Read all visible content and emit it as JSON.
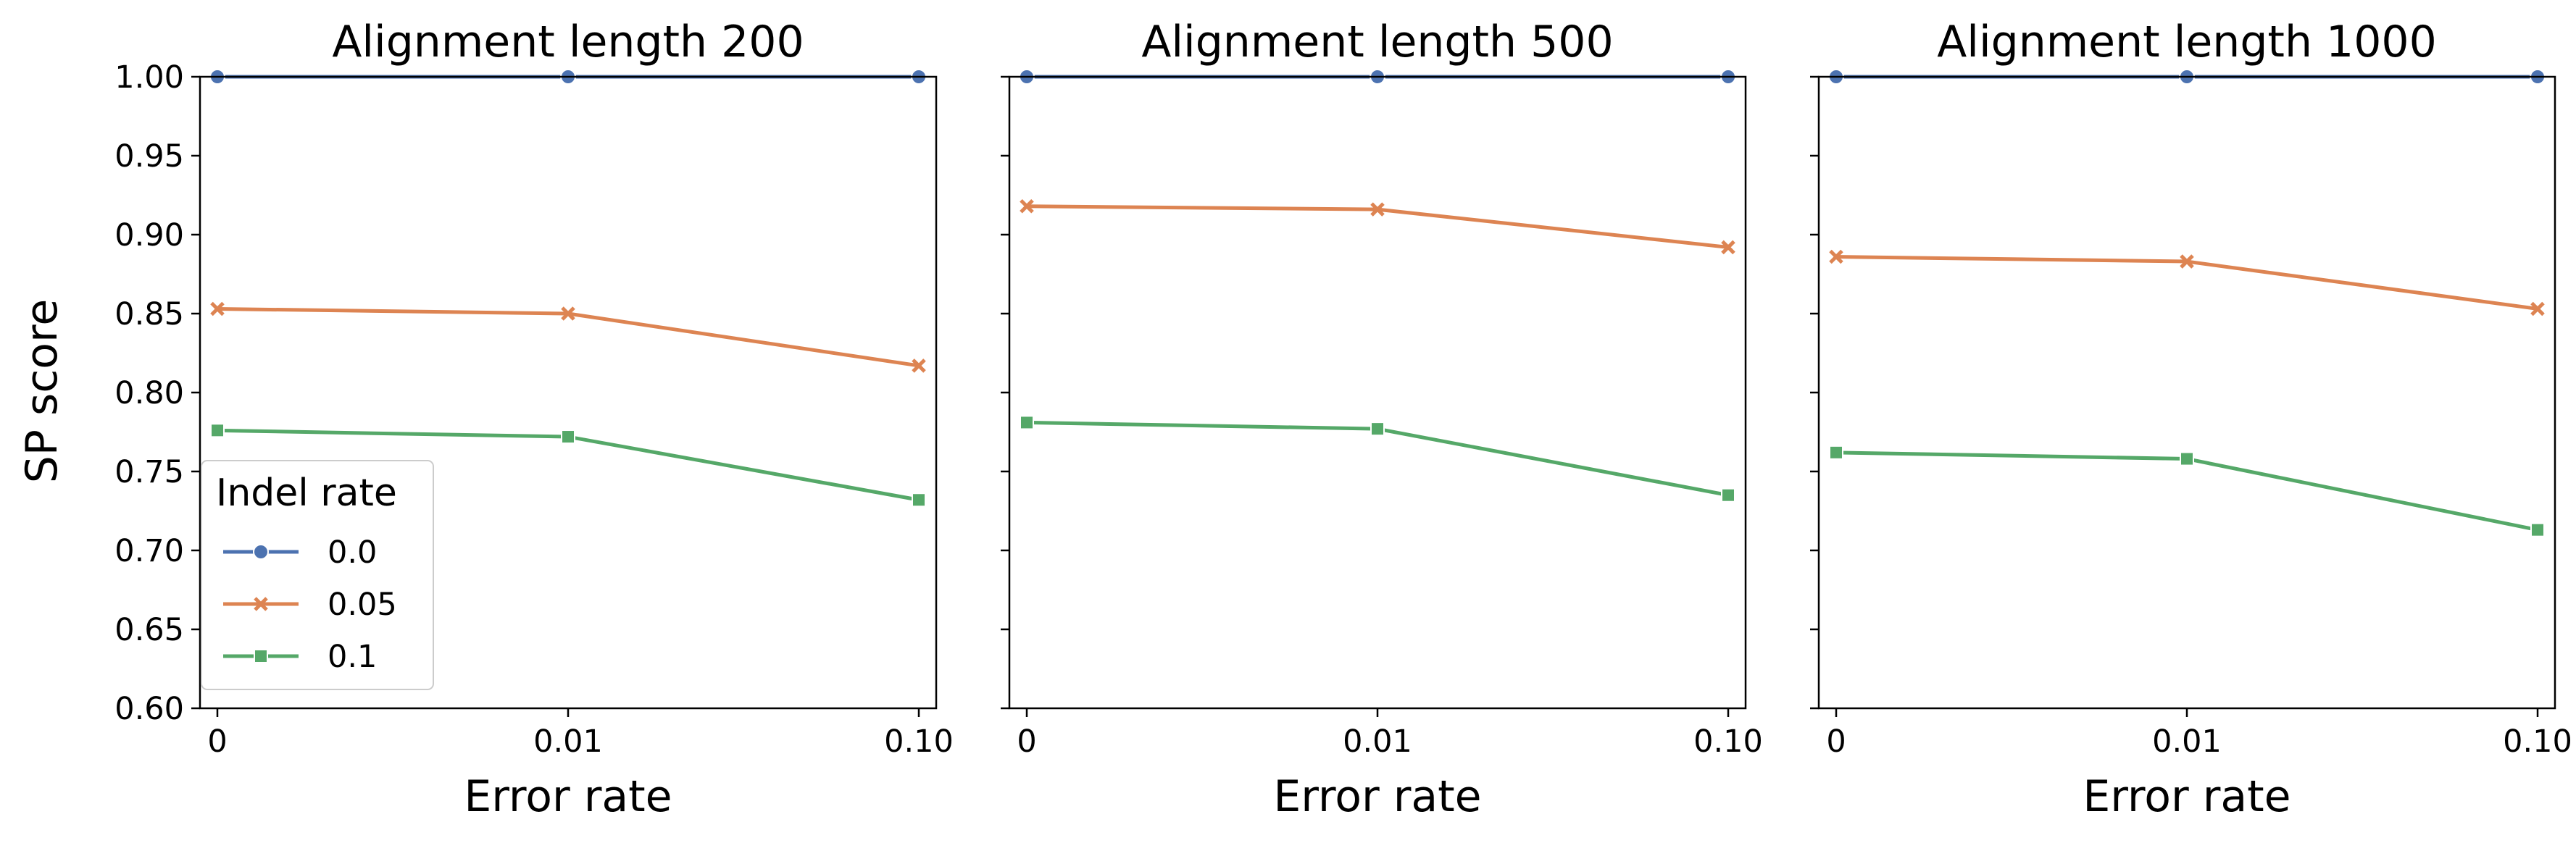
{
  "chart_data": {
    "type": "line",
    "shared_ylabel": "SP score",
    "ylim": [
      0.6,
      1.0
    ],
    "yticks": [
      "0.60",
      "0.65",
      "0.70",
      "0.75",
      "0.80",
      "0.85",
      "0.90",
      "0.95",
      "1.00"
    ],
    "legend": {
      "title": "Indel rate",
      "placement": "lower-left of first panel",
      "entries": [
        "0.0",
        "0.05",
        "0.1"
      ]
    },
    "colors": {
      "0.0": "#4c72b0",
      "0.05": "#dd8452",
      "0.1": "#55a868"
    },
    "markers": {
      "0.0": "circle",
      "0.05": "x",
      "0.1": "square"
    },
    "panels": [
      {
        "title": "Alignment length 200",
        "xlabel": "Error rate",
        "categories": [
          "0",
          "0.01",
          "0.10"
        ],
        "series": [
          {
            "name": "0.0",
            "values": [
              1.0,
              1.0,
              1.0
            ]
          },
          {
            "name": "0.05",
            "values": [
              0.853,
              0.85,
              0.817
            ]
          },
          {
            "name": "0.1",
            "values": [
              0.776,
              0.772,
              0.732
            ]
          }
        ]
      },
      {
        "title": "Alignment length 500",
        "xlabel": "Error rate",
        "categories": [
          "0",
          "0.01",
          "0.10"
        ],
        "series": [
          {
            "name": "0.0",
            "values": [
              1.0,
              1.0,
              1.0
            ]
          },
          {
            "name": "0.05",
            "values": [
              0.918,
              0.916,
              0.892
            ]
          },
          {
            "name": "0.1",
            "values": [
              0.781,
              0.777,
              0.735
            ]
          }
        ]
      },
      {
        "title": "Alignment length 1000",
        "xlabel": "Error rate",
        "categories": [
          "0",
          "0.01",
          "0.10"
        ],
        "series": [
          {
            "name": "0.0",
            "values": [
              1.0,
              1.0,
              1.0
            ]
          },
          {
            "name": "0.05",
            "values": [
              0.886,
              0.883,
              0.853
            ]
          },
          {
            "name": "0.1",
            "values": [
              0.762,
              0.758,
              0.713
            ]
          }
        ]
      }
    ]
  }
}
